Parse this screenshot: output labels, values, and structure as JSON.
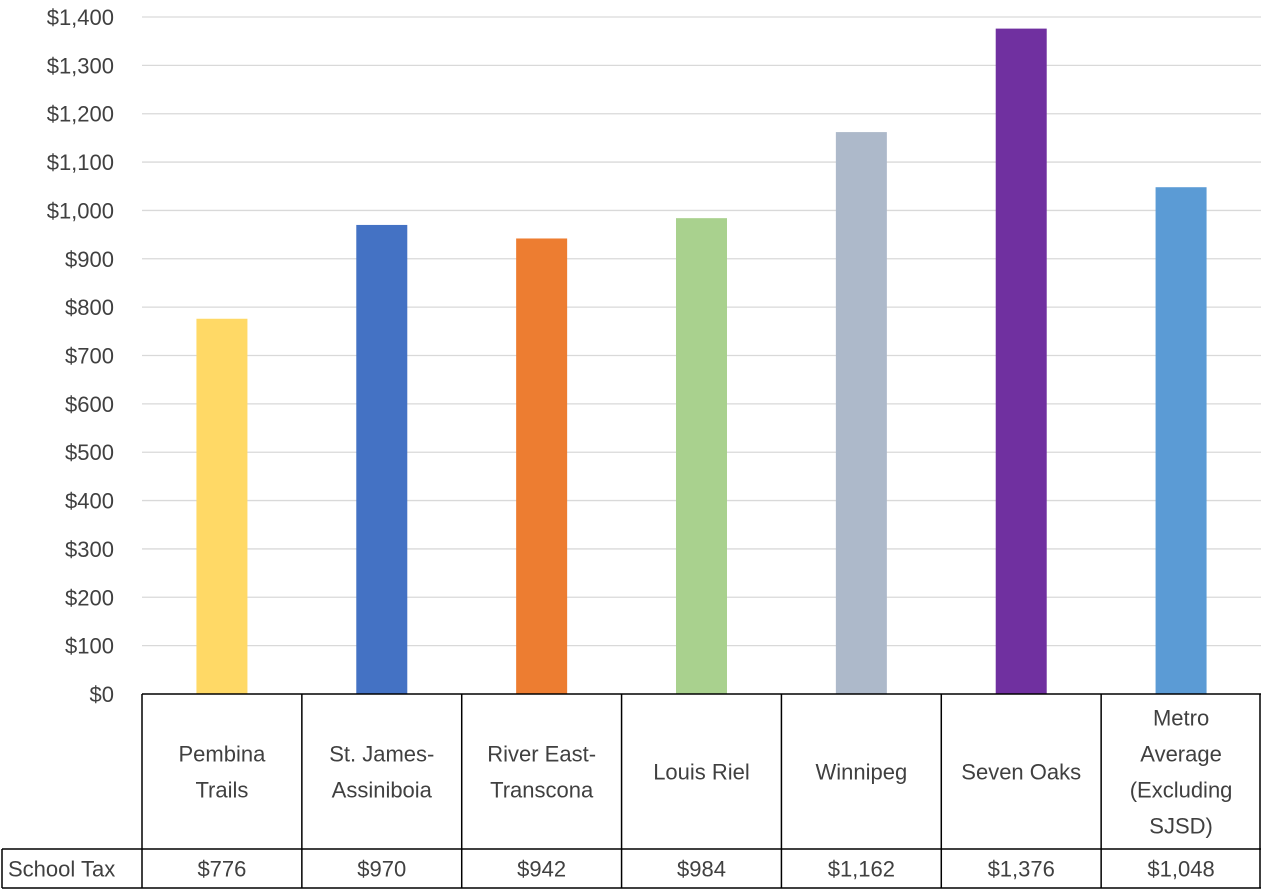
{
  "chart_data": {
    "type": "bar",
    "categories": [
      [
        "Pembina",
        "Trails"
      ],
      [
        "St. James-",
        "Assiniboia"
      ],
      [
        "River East-",
        "Transcona"
      ],
      [
        "Louis Riel"
      ],
      [
        "Winnipeg"
      ],
      [
        "Seven Oaks"
      ],
      [
        "Metro",
        "Average",
        "(Excluding",
        "SJSD)"
      ]
    ],
    "series": [
      {
        "name": "School Tax",
        "values": [
          776,
          970,
          942,
          984,
          1162,
          1376,
          1048
        ],
        "labels": [
          "$776",
          "$970",
          "$942",
          "$984",
          "$1,162",
          "$1,376",
          "$1,048"
        ]
      }
    ],
    "colors": [
      "#FFD966",
      "#4472C4",
      "#ED7D31",
      "#A9D18E",
      "#ADB9CA",
      "#7030A0",
      "#5B9BD5"
    ],
    "ylim": [
      0,
      1400
    ],
    "ytick_step": 100,
    "ytick_labels": [
      "$0",
      "$100",
      "$200",
      "$300",
      "$400",
      "$500",
      "$600",
      "$700",
      "$800",
      "$900",
      "$1,000",
      "$1,100",
      "$1,200",
      "$1,300",
      "$1,400"
    ],
    "grid": true,
    "data_table": true,
    "title": "",
    "xlabel": "",
    "ylabel": ""
  }
}
